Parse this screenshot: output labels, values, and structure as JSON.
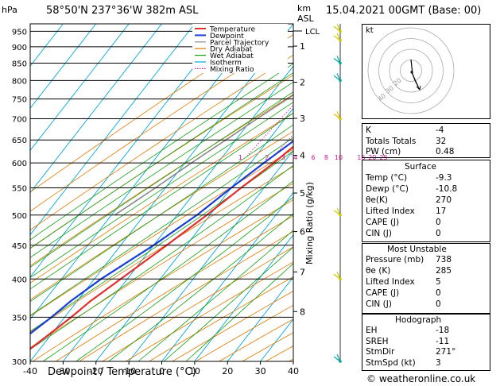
{
  "header": {
    "y_unit": "hPa",
    "location": "58°50'N  237°36'W  382m  ASL",
    "km_label": "km",
    "asl_label": "ASL",
    "datetime": "15.04.2021  00GMT  (Base: 00)"
  },
  "chart_data": {
    "type": "line",
    "title": "",
    "xlabel": "Dewpoint / Temperature (°C)",
    "ylabel": "hPa",
    "right_ylabel": "Mixing Ratio (g/kg)",
    "x_ticks": [
      -40,
      -30,
      -20,
      -10,
      0,
      10,
      20,
      30,
      40
    ],
    "xlim": [
      -40,
      40
    ],
    "ylim_hpa": [
      975,
      300
    ],
    "y_ticks": [
      300,
      350,
      400,
      450,
      500,
      550,
      600,
      650,
      700,
      750,
      800,
      850,
      900,
      950
    ],
    "km_ticks": [
      {
        "label": "8",
        "hpa": 357
      },
      {
        "label": "7",
        "hpa": 410
      },
      {
        "label": "6",
        "hpa": 472
      },
      {
        "label": "5",
        "hpa": 540
      },
      {
        "label": "4",
        "hpa": 616
      },
      {
        "label": "3",
        "hpa": 701
      },
      {
        "label": "2",
        "hpa": 795
      },
      {
        "label": "1",
        "hpa": 902
      }
    ],
    "lcl": {
      "label": "LCL",
      "hpa": 951
    },
    "mixing_ratio_labels": [
      "1",
      "2",
      "3",
      "4",
      "6",
      "8",
      "10",
      "16",
      "20",
      "25"
    ],
    "legend": [
      "Temperature",
      "Dewpoint",
      "Parcel Trajectory",
      "Dry Adiabat",
      "Wet Adiabat",
      "Isotherm",
      "Mixing Ratio"
    ],
    "legend_colors": [
      "#e03030",
      "#1a3fd6",
      "#888888",
      "#e07a00",
      "#10a010",
      "#00a8d8",
      "#e0109e"
    ],
    "series": [
      {
        "name": "Temperature",
        "color": "#e03030",
        "points": [
          [
            975,
            -9.3
          ],
          [
            950,
            -10.5
          ],
          [
            900,
            -13
          ],
          [
            850,
            -15.5
          ],
          [
            800,
            -12
          ],
          [
            780,
            -8
          ],
          [
            750,
            -6
          ],
          [
            700,
            -7.5
          ],
          [
            650,
            -10
          ],
          [
            600,
            -13
          ],
          [
            550,
            -17
          ],
          [
            500,
            -21
          ],
          [
            450,
            -26
          ],
          [
            400,
            -32
          ],
          [
            370,
            -36
          ],
          [
            350,
            -38
          ],
          [
            320,
            -42
          ],
          [
            300,
            -45
          ]
        ]
      },
      {
        "name": "Dewpoint",
        "color": "#1a3fd6",
        "points": [
          [
            975,
            -10.8
          ],
          [
            950,
            -12
          ],
          [
            900,
            -15
          ],
          [
            850,
            -18
          ],
          [
            800,
            -12
          ],
          [
            750,
            -8.5
          ],
          [
            700,
            -9
          ],
          [
            650,
            -12
          ],
          [
            600,
            -16
          ],
          [
            550,
            -20
          ],
          [
            500,
            -24
          ],
          [
            450,
            -30
          ],
          [
            400,
            -38
          ],
          [
            370,
            -42
          ],
          [
            350,
            -44
          ],
          [
            320,
            -48
          ],
          [
            300,
            -52
          ]
        ]
      },
      {
        "name": "Parcel Trajectory",
        "color": "#888888",
        "points": [
          [
            975,
            -9.3
          ],
          [
            951,
            -10.9
          ],
          [
            900,
            -13.5
          ],
          [
            850,
            -16.5
          ],
          [
            800,
            -20
          ],
          [
            750,
            -24
          ],
          [
            700,
            -28.5
          ],
          [
            650,
            -33
          ],
          [
            600,
            -38
          ],
          [
            550,
            -43
          ],
          [
            500,
            -49
          ]
        ]
      }
    ]
  },
  "indices": {
    "rows": [
      {
        "label": "K",
        "value": "-4"
      },
      {
        "label": "Totals Totals",
        "value": "32"
      },
      {
        "label": "PW (cm)",
        "value": "0.48"
      }
    ]
  },
  "surface": {
    "title": "Surface",
    "rows": [
      {
        "label": "Temp (°C)",
        "value": "-9.3"
      },
      {
        "label": "Dewp (°C)",
        "value": "-10.8"
      },
      {
        "label": "θe(K)",
        "value": "270"
      },
      {
        "label": "Lifted Index",
        "value": "17"
      },
      {
        "label": "CAPE (J)",
        "value": "0"
      },
      {
        "label": "CIN (J)",
        "value": "0"
      }
    ]
  },
  "most_unstable": {
    "title": "Most Unstable",
    "rows": [
      {
        "label": "Pressure (mb)",
        "value": "738"
      },
      {
        "label": "θe (K)",
        "value": "285"
      },
      {
        "label": "Lifted Index",
        "value": "5"
      },
      {
        "label": "CAPE (J)",
        "value": "0"
      },
      {
        "label": "CIN (J)",
        "value": "0"
      }
    ]
  },
  "hodograph": {
    "title": "Hodograph",
    "kt_label": "kt",
    "ring_labels": [
      "20",
      "30",
      "40"
    ],
    "rows": [
      {
        "label": "EH",
        "value": "-18"
      },
      {
        "label": "SREH",
        "value": "-11"
      },
      {
        "label": "StmDir",
        "value": "271°"
      },
      {
        "label": "StmSpd (kt)",
        "value": "3"
      }
    ]
  },
  "credit": "© weatheronline.co.uk"
}
